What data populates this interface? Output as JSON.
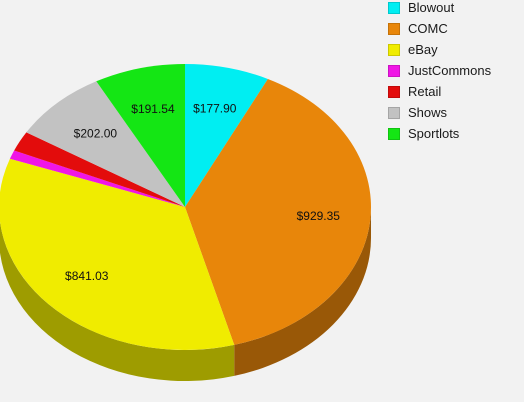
{
  "chart_data": {
    "type": "pie",
    "title": "",
    "slices": [
      {
        "name": "Blowout",
        "value": 177.9,
        "label": "$177.90",
        "color": "#00eef2"
      },
      {
        "name": "COMC",
        "value": 929.35,
        "label": "$929.35",
        "color": "#e8860a"
      },
      {
        "name": "eBay",
        "value": 841.03,
        "label": "$841.03",
        "color": "#f0ec00"
      },
      {
        "name": "JustCommons",
        "value": 24.0,
        "label": "",
        "color": "#f016e6"
      },
      {
        "name": "Retail",
        "value": 55.0,
        "label": "",
        "color": "#e30c0c"
      },
      {
        "name": "Shows",
        "value": 202.0,
        "label": "$202.00",
        "color": "#c2c2c2"
      },
      {
        "name": "Sportlots",
        "value": 191.54,
        "label": "$191.54",
        "color": "#14e614"
      }
    ],
    "start_angle_deg": 0,
    "direction": "clockwise",
    "style": "3d-tilted",
    "legend_position": "top-right"
  }
}
